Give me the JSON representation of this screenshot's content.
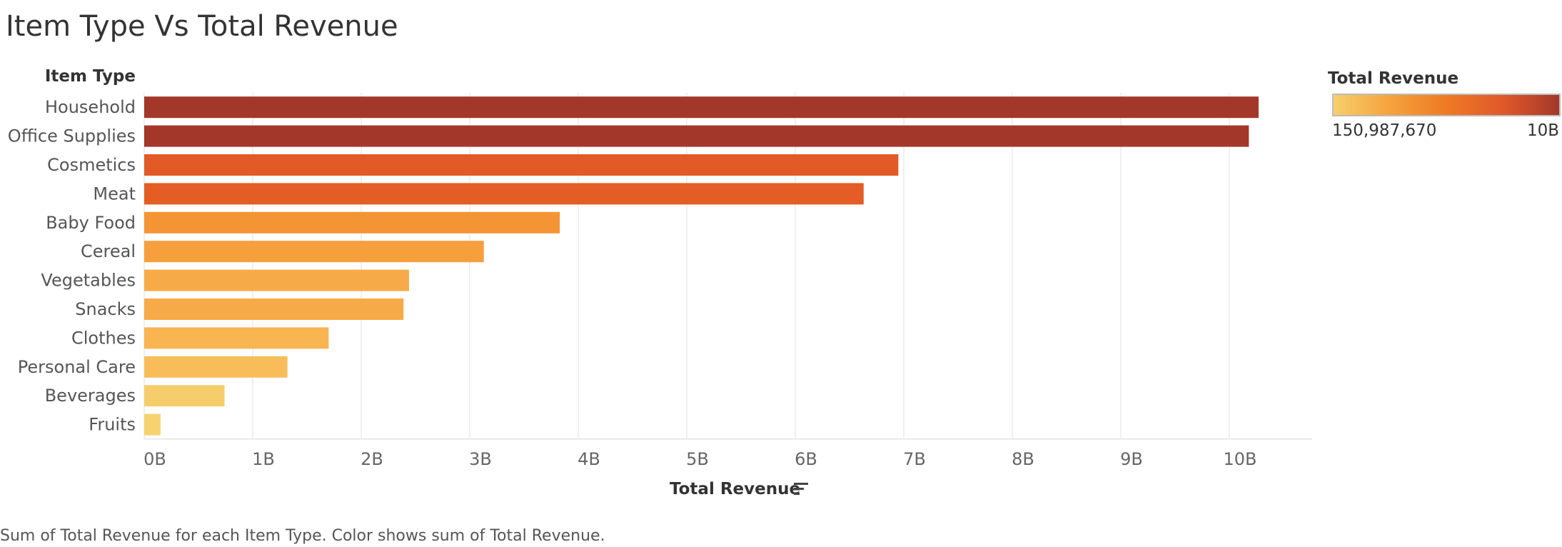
{
  "header": {
    "title": "Item Type Vs Total Revenue"
  },
  "legend": {
    "title": "Total Revenue",
    "min_label": "150,987,670",
    "max_label": "10B",
    "gradient_colors": [
      "#f6d06b",
      "#f5a23e",
      "#ee7a24",
      "#e0592a",
      "#a3382a"
    ]
  },
  "caption": "Sum of Total Revenue for each Item Type.  Color shows sum of Total Revenue.",
  "chart_data": {
    "type": "bar",
    "orientation": "horizontal",
    "y_header": "Item Type",
    "xlabel": "Total Revenue",
    "xlim": [
      0,
      10.8
    ],
    "x_unit": "billions",
    "x_ticks": [
      "0B",
      "1B",
      "2B",
      "3B",
      "4B",
      "5B",
      "6B",
      "7B",
      "8B",
      "9B",
      "10B"
    ],
    "grid": true,
    "sorted": "descending",
    "categories": [
      "Household",
      "Office Supplies",
      "Cosmetics",
      "Meat",
      "Baby Food",
      "Cereal",
      "Vegetables",
      "Snacks",
      "Clothes",
      "Personal Care",
      "Beverages",
      "Fruits"
    ],
    "values": [
      10.27,
      10.18,
      6.95,
      6.63,
      3.83,
      3.13,
      2.44,
      2.39,
      1.7,
      1.32,
      0.74,
      0.15
    ],
    "colors": [
      "#a3382a",
      "#a3382a",
      "#e25b26",
      "#e35d24",
      "#f49535",
      "#f59f3d",
      "#f7ab48",
      "#f7ab48",
      "#f8b552",
      "#f8bd59",
      "#f6cd6b",
      "#f5d36e"
    ]
  }
}
